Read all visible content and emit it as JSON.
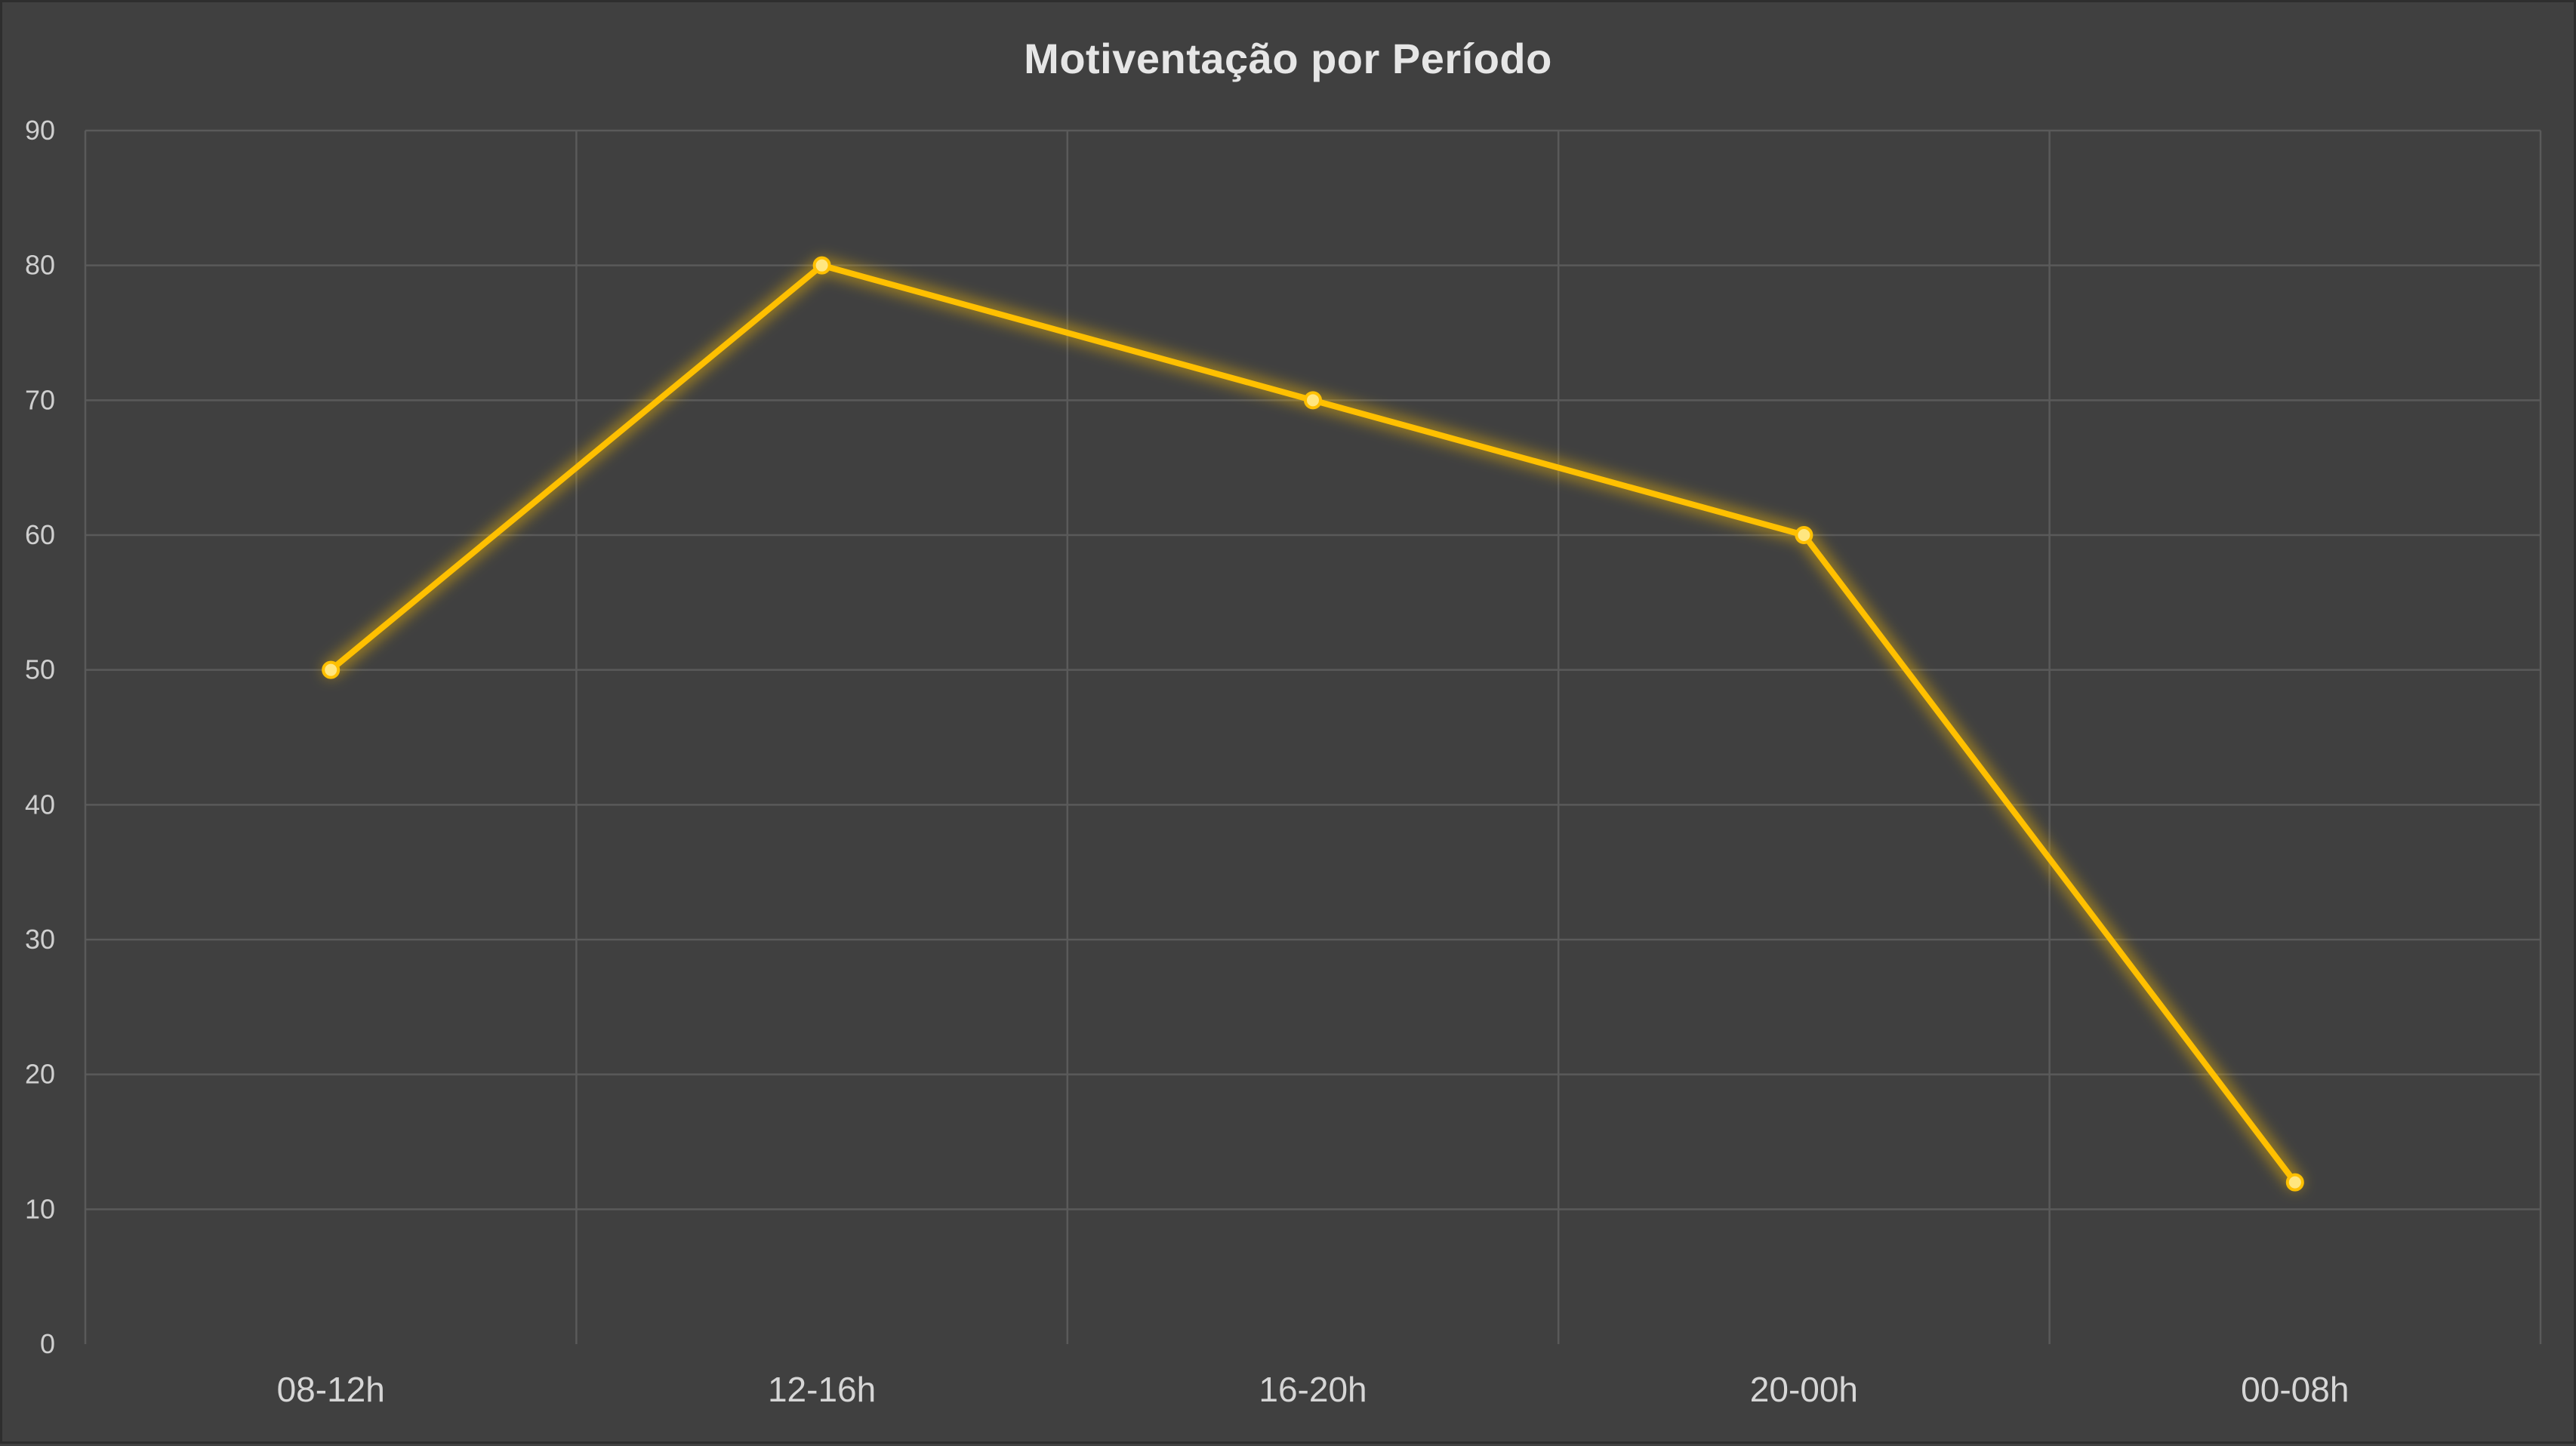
{
  "chart_data": {
    "type": "line",
    "title": "Motiventação por Período",
    "categories": [
      "08-12h",
      "12-16h",
      "16-20h",
      "20-00h",
      "00-08h"
    ],
    "series": [
      {
        "values": [
          50,
          80,
          70,
          60,
          12
        ],
        "color": "#FFC000"
      }
    ],
    "ylim": [
      0,
      90
    ],
    "yticks": [
      0,
      10,
      20,
      30,
      40,
      50,
      60,
      70,
      80,
      90
    ],
    "xlabel": "",
    "ylabel": "",
    "grid": true,
    "legend": "none"
  },
  "colors": {
    "background": "#404040",
    "grid": "#5a5a5a",
    "text": "#d9d9d9",
    "line": "#FFC000"
  }
}
